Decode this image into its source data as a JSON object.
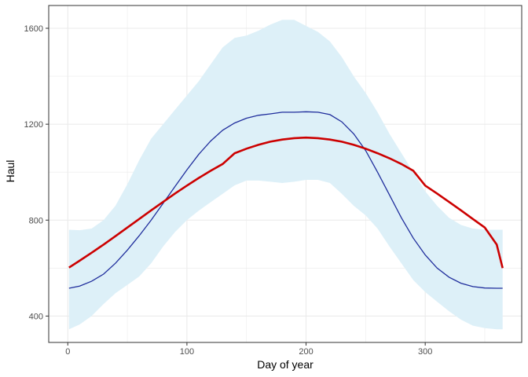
{
  "chart_data": {
    "type": "line",
    "xlabel": "Day of year",
    "ylabel": "Haul",
    "xlim": [
      -16,
      381
    ],
    "ylim": [
      290,
      1695
    ],
    "x_ticks": [
      0,
      100,
      200,
      300
    ],
    "y_ticks": [
      400,
      800,
      1200,
      1600
    ],
    "grid": true,
    "colors": {
      "ribbon": "#ddf0f8",
      "observed": "#1f2d9c",
      "fitted": "#cc0000",
      "grid": "#ebebeb",
      "panel_border": "#333333"
    },
    "ribbon": {
      "x": [
        1,
        10,
        20,
        30,
        40,
        50,
        60,
        70,
        80,
        90,
        100,
        110,
        120,
        130,
        140,
        150,
        160,
        170,
        180,
        190,
        200,
        210,
        220,
        230,
        240,
        250,
        260,
        270,
        280,
        290,
        300,
        310,
        320,
        330,
        340,
        350,
        360,
        365
      ],
      "upper": [
        760,
        758,
        765,
        800,
        860,
        950,
        1050,
        1140,
        1200,
        1260,
        1320,
        1380,
        1450,
        1520,
        1560,
        1570,
        1590,
        1615,
        1635,
        1635,
        1610,
        1585,
        1545,
        1480,
        1400,
        1330,
        1250,
        1160,
        1080,
        1000,
        920,
        860,
        810,
        780,
        765,
        760,
        760,
        760
      ],
      "lower": [
        345,
        365,
        400,
        450,
        495,
        530,
        565,
        620,
        690,
        750,
        800,
        840,
        875,
        910,
        945,
        965,
        965,
        960,
        955,
        960,
        968,
        968,
        955,
        910,
        860,
        820,
        765,
        690,
        620,
        550,
        500,
        460,
        420,
        385,
        360,
        350,
        345,
        345
      ]
    },
    "series": [
      {
        "x": [
          1,
          10,
          20,
          30,
          40,
          50,
          60,
          70,
          80,
          90,
          100,
          110,
          120,
          130,
          140,
          150,
          160,
          170,
          180,
          190,
          200,
          210,
          220,
          230,
          240,
          250,
          260,
          270,
          280,
          290,
          300,
          310,
          320,
          330,
          340,
          350,
          360,
          365
        ],
        "values": [
          516,
          525,
          545,
          575,
          620,
          675,
          735,
          800,
          870,
          940,
          1010,
          1075,
          1130,
          1175,
          1205,
          1225,
          1237,
          1243,
          1250,
          1250,
          1252,
          1250,
          1240,
          1210,
          1160,
          1090,
          1000,
          905,
          810,
          725,
          655,
          600,
          562,
          537,
          523,
          517,
          516,
          516
        ]
      },
      {
        "x": [
          1,
          10,
          20,
          30,
          40,
          50,
          60,
          70,
          80,
          90,
          100,
          110,
          120,
          130,
          140,
          150,
          160,
          170,
          180,
          190,
          200,
          210,
          220,
          230,
          240,
          250,
          260,
          270,
          280,
          290,
          300,
          310,
          320,
          330,
          340,
          350,
          360,
          365
        ],
        "values": [
          602,
          631,
          664,
          698,
          733,
          769,
          805,
          841,
          876,
          911,
          944,
          976,
          1006,
          1034,
          1079,
          1098,
          1114,
          1127,
          1136,
          1142,
          1144,
          1142,
          1136,
          1127,
          1114,
          1098,
          1079,
          1058,
          1034,
          1006,
          944,
          911,
          876,
          841,
          805,
          769,
          698,
          600
        ]
      }
    ]
  }
}
